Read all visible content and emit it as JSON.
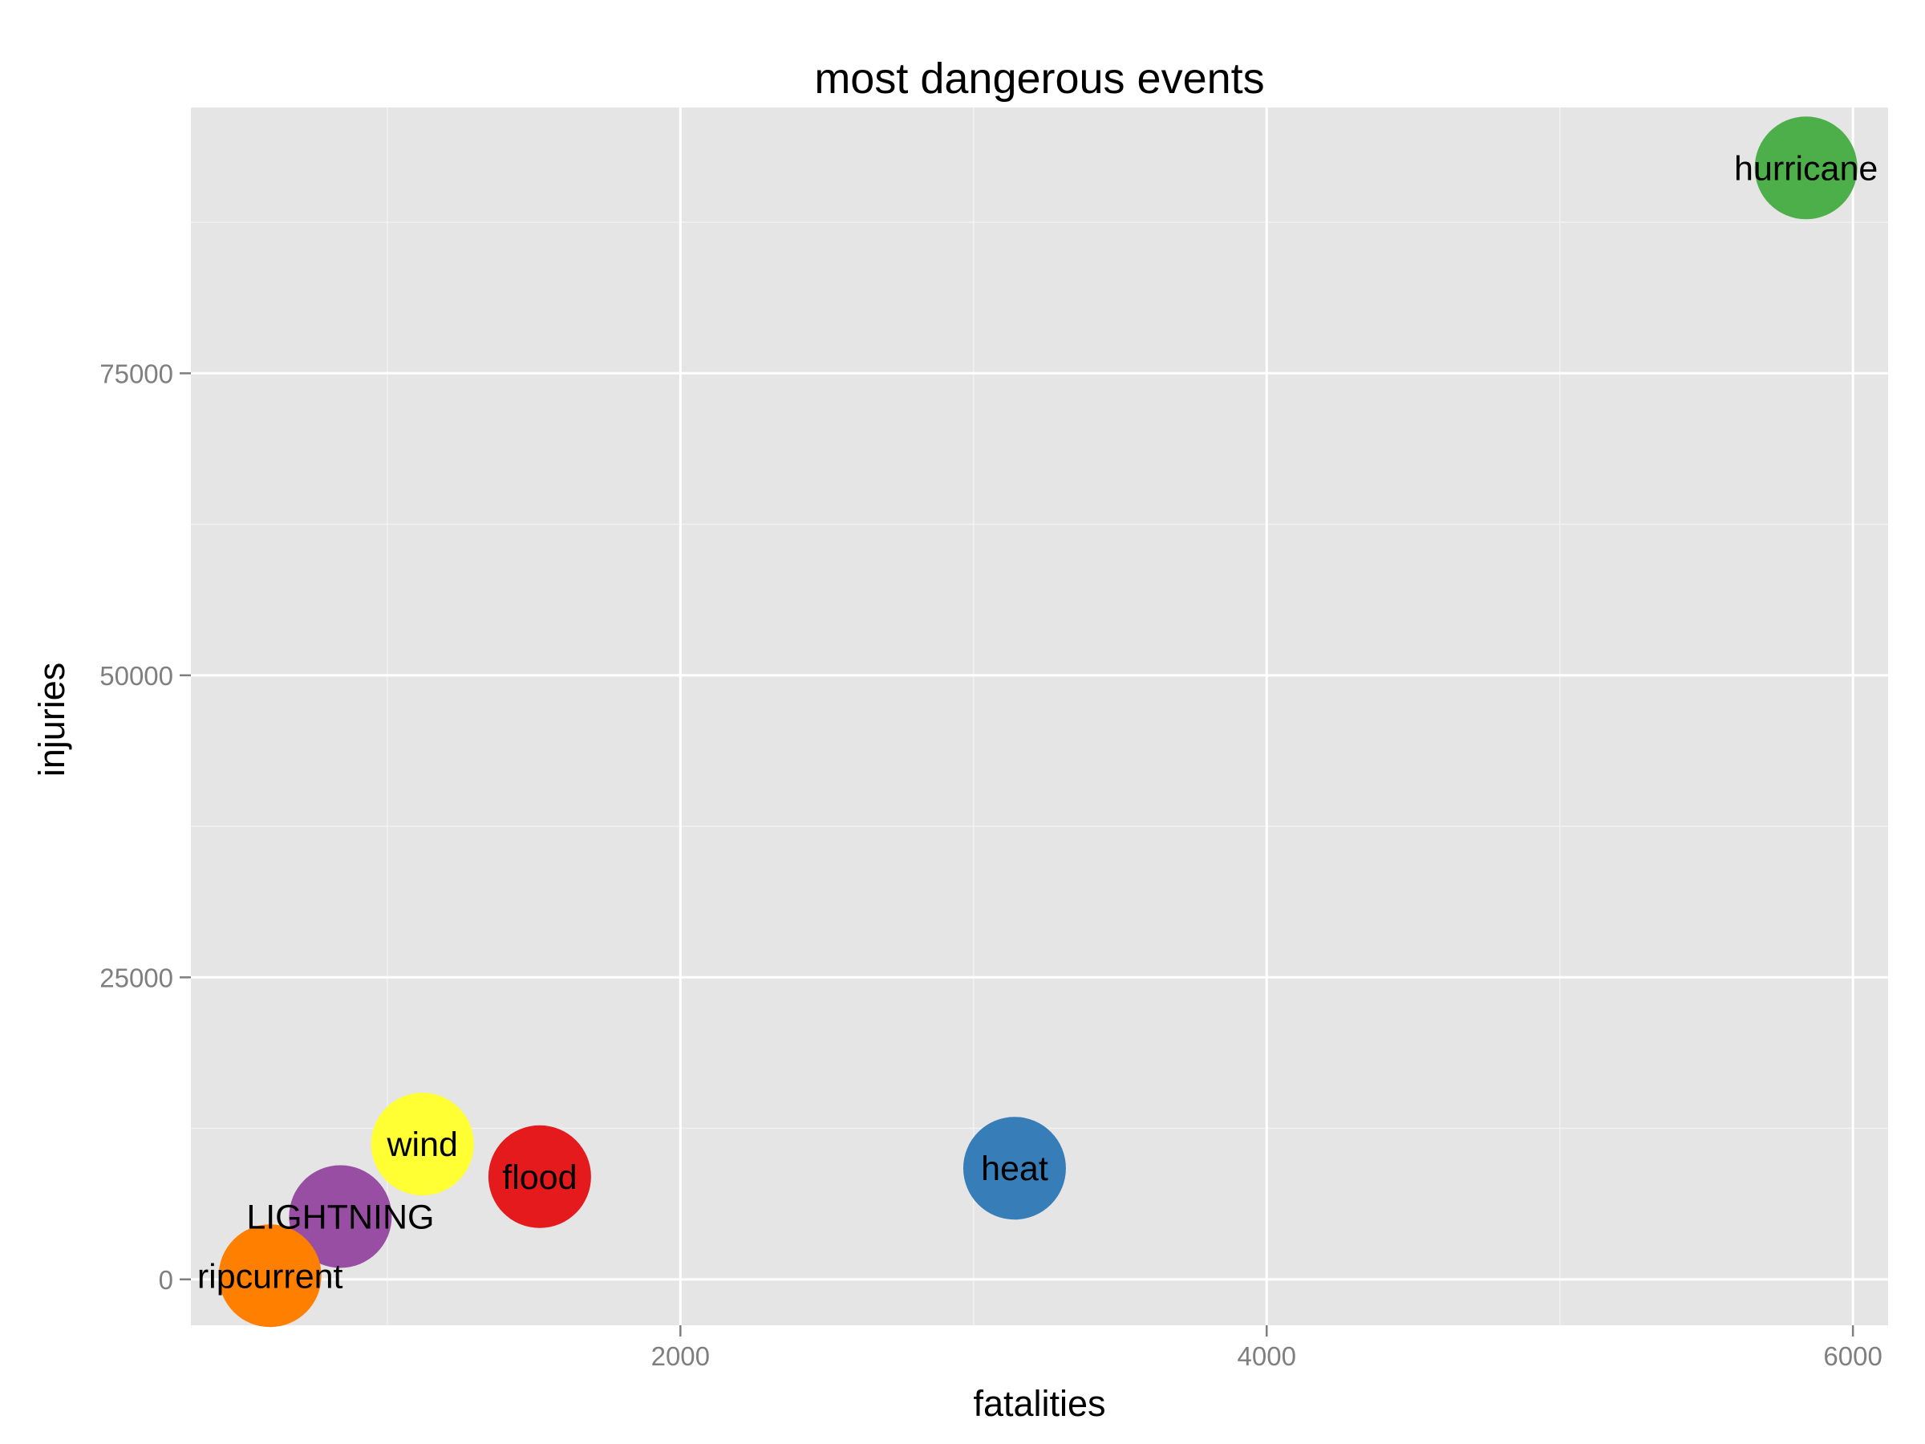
{
  "chart_data": {
    "type": "scatter",
    "title": "most dangerous events",
    "xlabel": "fatalities",
    "ylabel": "injuries",
    "xlim": [
      330,
      6120
    ],
    "ylim": [
      -3800,
      97000
    ],
    "xticks": [
      2000,
      4000,
      6000
    ],
    "xtick_labels": [
      "2000",
      "4000",
      "6000"
    ],
    "yticks": [
      0,
      25000,
      50000,
      75000
    ],
    "ytick_labels": [
      "0",
      "25000",
      "50000",
      "75000"
    ],
    "grid": true,
    "legend": "none",
    "points": [
      {
        "label": "hurricane",
        "x": 5840,
        "y": 92000,
        "color": "#4daf4a"
      },
      {
        "label": "heat",
        "x": 3140,
        "y": 9200,
        "color": "#377eb8"
      },
      {
        "label": "flood",
        "x": 1520,
        "y": 8500,
        "color": "#e41a1c"
      },
      {
        "label": "wind",
        "x": 1120,
        "y": 11200,
        "color": "#ffff33"
      },
      {
        "label": "LIGHTNING",
        "x": 840,
        "y": 5200,
        "color": "#984ea3"
      },
      {
        "label": "ripcurrent",
        "x": 600,
        "y": 300,
        "color": "#ff7f00"
      }
    ]
  }
}
